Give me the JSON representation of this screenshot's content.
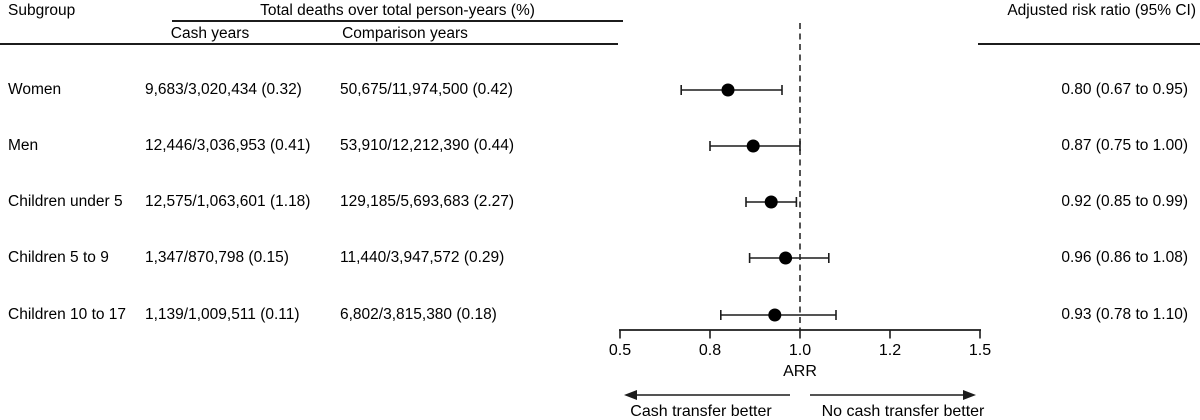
{
  "header": {
    "subgroup": "Subgroup",
    "deaths_group": "Total deaths over total person-years (%)",
    "cash_col": "Cash years",
    "comparison_col": "Comparison years",
    "arr_col": "Adjusted risk ratio (95% CI)"
  },
  "rows": [
    {
      "label": "Women",
      "cash": "9,683/3,020,434 (0.32)",
      "comparison": "50,675/11,974,500 (0.42)",
      "arr": "0.80 (0.67 to 0.95)"
    },
    {
      "label": "Men",
      "cash": "12,446/3,036,953 (0.41)",
      "comparison": "53,910/12,212,390 (0.44)",
      "arr": "0.87 (0.75 to 1.00)"
    },
    {
      "label": "Children under 5",
      "cash": "12,575/1,063,601 (1.18)",
      "comparison": "129,185/5,693,683 (2.27)",
      "arr": "0.92 (0.85 to 0.99)"
    },
    {
      "label": "Children 5 to 9",
      "cash": "1,347/870,798 (0.15)",
      "comparison": "11,440/3,947,572 (0.29)",
      "arr": "0.96 (0.86 to 1.08)"
    },
    {
      "label": "Children 10 to 17",
      "cash": "1,139/1,009,511 (0.11)",
      "comparison": "6,802/3,815,380 (0.18)",
      "arr": "0.93 (0.78 to 1.10)"
    }
  ],
  "chart_data": {
    "type": "forest",
    "categories": [
      "Women",
      "Men",
      "Children under 5",
      "Children 5 to 9",
      "Children 10 to 17"
    ],
    "series": [
      {
        "group": "Women",
        "est": 0.8,
        "lo": 0.67,
        "hi": 0.95
      },
      {
        "group": "Men",
        "est": 0.87,
        "lo": 0.75,
        "hi": 1.0
      },
      {
        "group": "Children under 5",
        "est": 0.92,
        "lo": 0.85,
        "hi": 0.99
      },
      {
        "group": "Children 5 to 9",
        "est": 0.96,
        "lo": 0.86,
        "hi": 1.08
      },
      {
        "group": "Children 10 to 17",
        "est": 0.93,
        "lo": 0.78,
        "hi": 1.1
      }
    ],
    "xlabel": "ARR",
    "xlim": [
      0.5,
      1.5
    ],
    "tick_labels": [
      "0.5",
      "0.8",
      "1.0",
      "1.2",
      "1.5"
    ],
    "tick_values": [
      0.5,
      0.8,
      1.0,
      1.2,
      1.5
    ],
    "tick_spacing": "equal",
    "reference_line": 1.0,
    "left_label": "Cash transfer better",
    "right_label": "No cash transfer better",
    "marker_color": "#000000",
    "line_color": "#1c1c1c",
    "grid": false
  }
}
